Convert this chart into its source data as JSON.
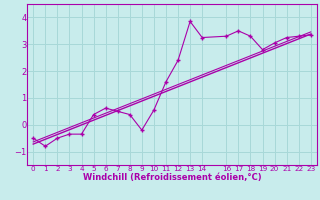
{
  "title": "",
  "xlabel": "Windchill (Refroidissement éolien,°C)",
  "ylabel": "",
  "bg_color": "#c8ecec",
  "grid_color": "#a8d8d8",
  "line_color": "#aa00aa",
  "xlim": [
    -0.5,
    23.5
  ],
  "ylim": [
    -1.5,
    4.5
  ],
  "xticks": [
    0,
    1,
    2,
    3,
    4,
    5,
    6,
    7,
    8,
    9,
    10,
    11,
    12,
    13,
    14,
    16,
    17,
    18,
    19,
    20,
    21,
    22,
    23
  ],
  "yticks": [
    -1,
    0,
    1,
    2,
    3,
    4
  ],
  "scatter_x": [
    0,
    1,
    2,
    3,
    4,
    5,
    6,
    7,
    8,
    9,
    10,
    11,
    12,
    13,
    14,
    16,
    17,
    18,
    19,
    20,
    21,
    22,
    23
  ],
  "scatter_y": [
    -0.5,
    -0.8,
    -0.5,
    -0.35,
    -0.35,
    0.38,
    0.62,
    0.5,
    0.38,
    -0.2,
    0.55,
    1.6,
    2.4,
    3.85,
    3.25,
    3.3,
    3.5,
    3.3,
    2.8,
    3.05,
    3.25,
    3.3,
    3.35
  ],
  "trend_x": [
    0,
    23
  ],
  "trend_y": [
    -0.72,
    3.38
  ],
  "xlabel_fontsize": 6.0,
  "xtick_fontsize": 5.2,
  "ytick_fontsize": 6.0
}
